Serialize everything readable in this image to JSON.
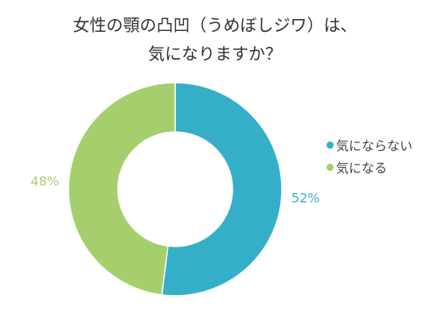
{
  "title_lines": [
    "女性の顎の凸凹（うめぼしジワ）は、",
    "気になりますか？"
  ],
  "chart_data": {
    "type": "pie",
    "style": "donut",
    "categories": [
      "気にならない",
      "気になる"
    ],
    "values": [
      52,
      48
    ],
    "data_labels": [
      "52%",
      "48%"
    ],
    "colors": [
      "#35afc8",
      "#a5cf6c"
    ],
    "legend": "right"
  }
}
